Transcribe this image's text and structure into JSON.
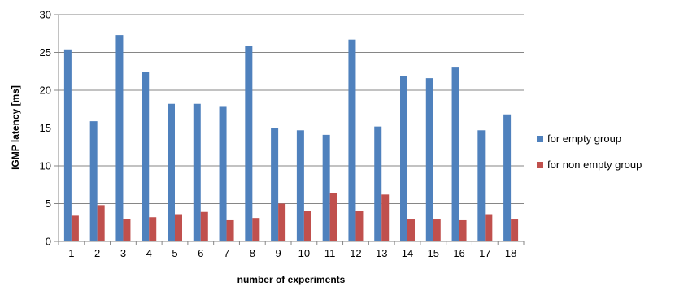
{
  "chart_data": {
    "type": "bar",
    "xlabel": "number of experiments",
    "ylabel": "IGMP latency [ms]",
    "ylim": [
      0,
      30
    ],
    "yticks": [
      0,
      5,
      10,
      15,
      20,
      25,
      30
    ],
    "grid": true,
    "legend_position": "right",
    "categories": [
      "1",
      "2",
      "3",
      "4",
      "5",
      "6",
      "7",
      "8",
      "9",
      "10",
      "11",
      "12",
      "13",
      "14",
      "15",
      "16",
      "17",
      "18"
    ],
    "series": [
      {
        "name": "for empty group",
        "color": "#4F81BD",
        "values": [
          25.4,
          15.9,
          27.3,
          22.4,
          18.2,
          18.2,
          17.8,
          25.9,
          15.0,
          14.7,
          14.1,
          26.7,
          15.2,
          21.9,
          21.6,
          23.0,
          14.7,
          16.8
        ]
      },
      {
        "name": "for non empty group",
        "color": "#C0504D",
        "values": [
          3.4,
          4.8,
          3.0,
          3.2,
          3.6,
          3.9,
          2.8,
          3.1,
          5.0,
          4.0,
          6.4,
          4.0,
          6.2,
          2.9,
          2.9,
          2.8,
          3.6,
          2.9
        ]
      }
    ]
  }
}
